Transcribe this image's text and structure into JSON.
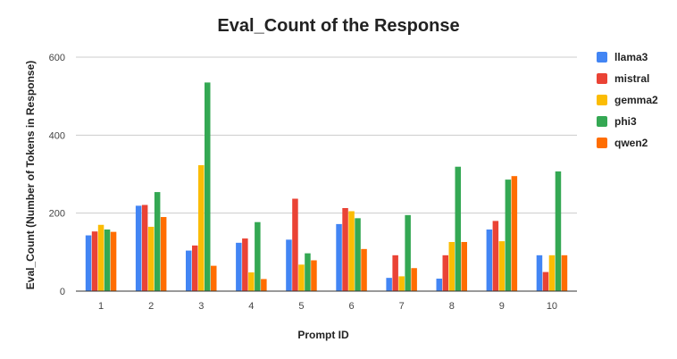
{
  "chart_data": {
    "type": "bar",
    "title": "Eval_Count of the Response",
    "xlabel": "Prompt ID",
    "ylabel": "Eval_Count (Number of Tokens in Response)",
    "categories": [
      "1",
      "2",
      "3",
      "4",
      "5",
      "6",
      "7",
      "8",
      "9",
      "10"
    ],
    "ylim": [
      0,
      600
    ],
    "yticks": [
      0,
      200,
      400,
      600
    ],
    "grid": true,
    "legend_position": "right",
    "series": [
      {
        "name": "llama3",
        "color": "#4285F4",
        "values": [
          143,
          219,
          104,
          124,
          132,
          172,
          34,
          32,
          158,
          92
        ]
      },
      {
        "name": "mistral",
        "color": "#EA4335",
        "values": [
          153,
          221,
          117,
          135,
          237,
          213,
          92,
          92,
          180,
          49
        ]
      },
      {
        "name": "gemma2",
        "color": "#FBBC04",
        "values": [
          170,
          165,
          323,
          48,
          68,
          205,
          38,
          126,
          128,
          92
        ]
      },
      {
        "name": "phi3",
        "color": "#34A853",
        "values": [
          158,
          254,
          535,
          177,
          97,
          187,
          195,
          319,
          286,
          307
        ]
      },
      {
        "name": "qwen2",
        "color": "#FF6D01",
        "values": [
          152,
          190,
          65,
          31,
          79,
          108,
          59,
          126,
          295,
          92
        ]
      }
    ]
  }
}
